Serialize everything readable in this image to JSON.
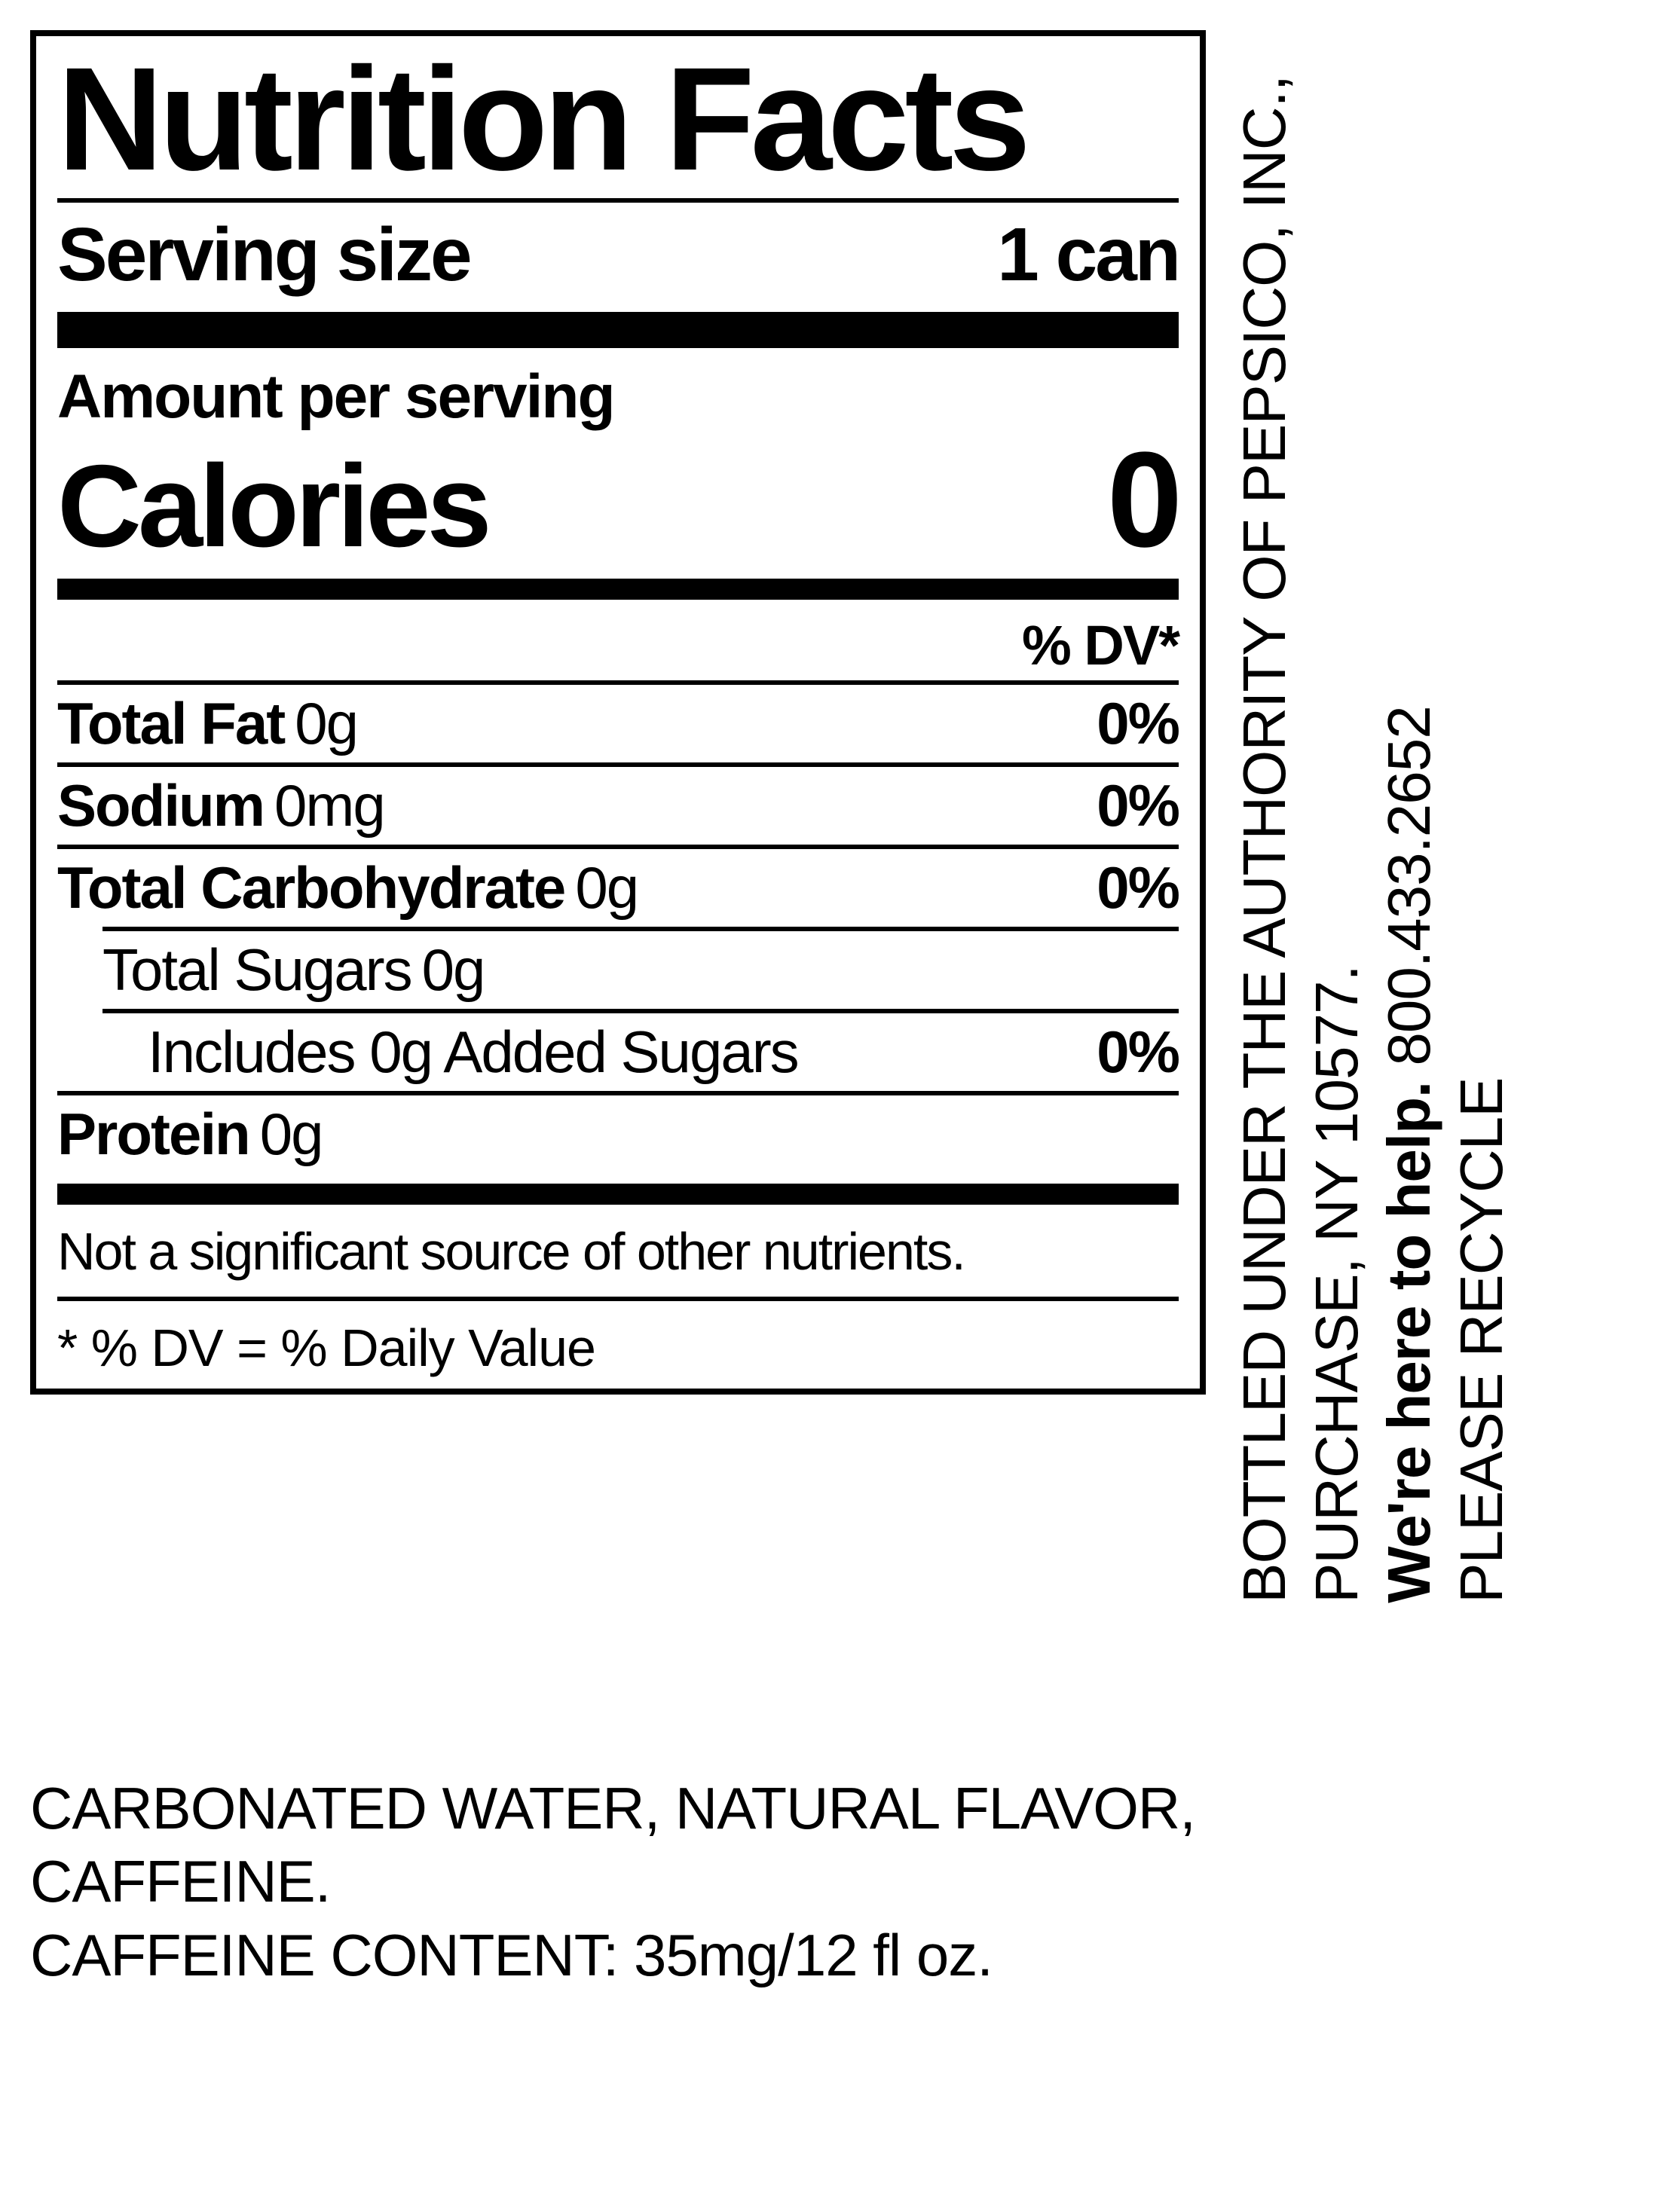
{
  "panel": {
    "title": "Nutrition Facts",
    "serving_size_label": "Serving size",
    "serving_size_value": "1 can",
    "amount_per_serving": "Amount per serving",
    "calories_label": "Calories",
    "calories_value": "0",
    "dv_header": "% DV*",
    "nutrients": [
      {
        "name": "Total Fat",
        "amount": "0g",
        "dv": "0%",
        "bold": true,
        "indent": 0
      },
      {
        "name": "Sodium",
        "amount": "0mg",
        "dv": "0%",
        "bold": true,
        "indent": 0
      },
      {
        "name": "Total Carbohydrate",
        "amount": "0g",
        "dv": "0%",
        "bold": true,
        "indent": 0
      },
      {
        "name": "Total Sugars",
        "amount": "0g",
        "dv": "",
        "bold": false,
        "indent": 1
      },
      {
        "name": "Includes 0g Added Sugars",
        "amount": "",
        "dv": "0%",
        "bold": false,
        "indent": 2
      },
      {
        "name": "Protein",
        "amount": "0g",
        "dv": "",
        "bold": true,
        "indent": 0
      }
    ],
    "footnote_not_significant": "Not a significant source of other nutrients.",
    "footnote_dv": "* % DV = % Daily Value"
  },
  "side": {
    "line1": "BOTTLED UNDER THE AUTHORITY OF PEPSICO, INC.,",
    "line2": "PURCHASE, NY 10577.",
    "line3a": "We're here to help.",
    "line3b": " 800.433.2652",
    "line4": "PLEASE RECYCLE"
  },
  "bottom": {
    "ingredients": "CARBONATED WATER, NATURAL FLAVOR, CAFFEINE.",
    "caffeine": "CAFFEINE CONTENT: 35mg/12 fl oz."
  },
  "style": {
    "border_color": "#000000",
    "background": "#ffffff"
  }
}
